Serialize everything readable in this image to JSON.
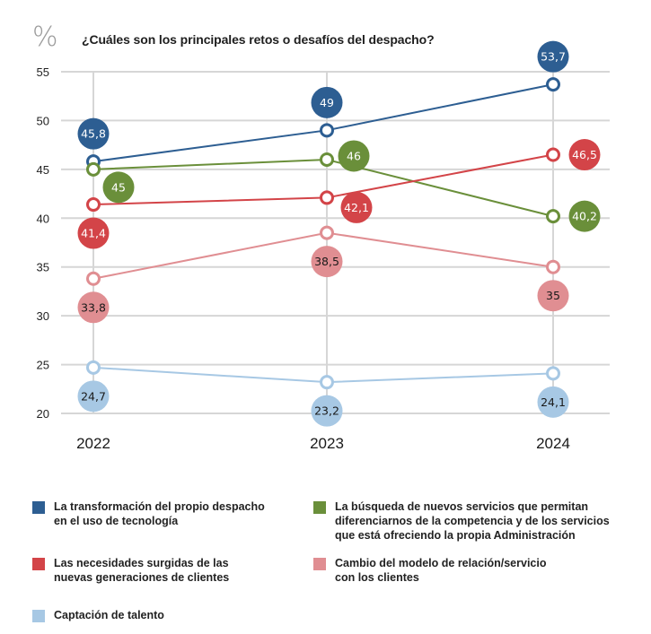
{
  "chart_data": {
    "type": "line",
    "title": "¿Cuáles son los principales retos o desafíos del despacho?",
    "unit_label": "%",
    "xlabel": "",
    "ylabel": "%",
    "x": [
      "2022",
      "2023",
      "2024"
    ],
    "yticks": [
      20,
      25,
      30,
      35,
      40,
      45,
      50,
      55
    ],
    "ylim": [
      20,
      55
    ],
    "grid": true,
    "legend_position": "bottom",
    "series": [
      {
        "name": "La transformación del propio despacho en el uso de tecnología",
        "legend_text": "La transformación del propio despacho\nen el uso de tecnología",
        "color": "#2d5e92",
        "label_text_color": "#ffffff",
        "values": [
          45.8,
          49,
          53.7
        ],
        "labels": [
          "45,8",
          "49",
          "53,7"
        ],
        "label_placement": [
          "above",
          "above",
          "above"
        ]
      },
      {
        "name": "La búsqueda de nuevos servicios que permitan diferenciarnos de la competencia y de los servicios que está ofreciendo la propia Administración",
        "legend_text": "La búsqueda de nuevos servicios que permitan\ndiferenciarnos de la competencia y de los servicios\nque está ofreciendo la propia Administración",
        "color": "#6a8f3a",
        "label_text_color": "#ffffff",
        "values": [
          45,
          46,
          40.2
        ],
        "labels": [
          "45",
          "46",
          "40,2"
        ],
        "label_placement": [
          "below-right",
          "right",
          "right"
        ]
      },
      {
        "name": "Las necesidades surgidas de las nuevas generaciones de clientes",
        "legend_text": "Las necesidades surgidas de las\nnuevas generaciones de clientes",
        "color": "#d34448",
        "label_text_color": "#ffffff",
        "values": [
          41.4,
          42.1,
          46.5
        ],
        "labels": [
          "41,4",
          "42,1",
          "46,5"
        ],
        "label_placement": [
          "below",
          "below-right",
          "right"
        ]
      },
      {
        "name": "Cambio del modelo de relación/servicio con los clientes",
        "legend_text": "Cambio del modelo de relación/servicio\ncon los clientes",
        "color": "#e08e92",
        "label_text_color": "#1a1a1a",
        "values": [
          33.8,
          38.5,
          35
        ],
        "labels": [
          "33,8",
          "38,5",
          "35"
        ],
        "label_placement": [
          "below",
          "below",
          "below"
        ]
      },
      {
        "name": "Captación de talento",
        "legend_text": "Captación de talento",
        "color": "#a7c8e4",
        "label_text_color": "#1a1a1a",
        "values": [
          24.7,
          23.2,
          24.1
        ],
        "labels": [
          "24,7",
          "23,2",
          "24,1"
        ],
        "label_placement": [
          "below",
          "below",
          "below"
        ]
      }
    ],
    "legend_order": [
      0,
      1,
      2,
      3,
      4
    ]
  }
}
